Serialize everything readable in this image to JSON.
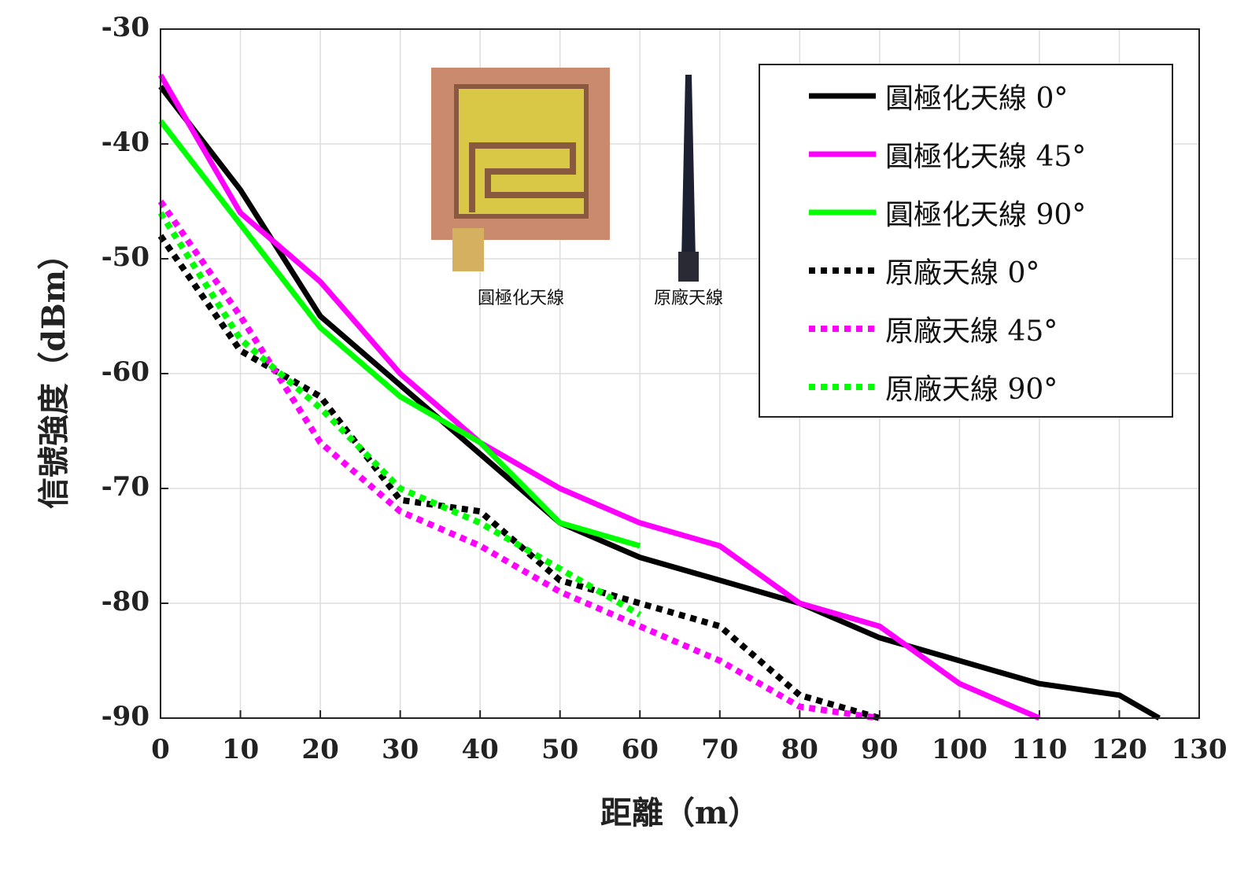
{
  "chart_data": {
    "type": "line",
    "x_label": "距離（m）",
    "y_label": "信號強度（dBm）",
    "x": [
      0,
      10,
      20,
      30,
      40,
      50,
      60,
      70,
      80,
      90,
      100,
      110,
      120,
      125
    ],
    "series": [
      {
        "name": "圓極化天線 0°",
        "color": "#000000",
        "style": "solid",
        "values": [
          -35,
          -44,
          -55,
          -61,
          -67,
          -73,
          -76,
          -78,
          -80,
          -83,
          -85,
          -87,
          -88,
          -90
        ]
      },
      {
        "name": "圓極化天線 45°",
        "color": "#ff00ff",
        "style": "solid",
        "values": [
          -34,
          -46,
          -52,
          -60,
          -66,
          -70,
          -73,
          -75,
          -80,
          -82,
          -87,
          -90,
          null,
          null
        ]
      },
      {
        "name": "圓極化天線 90°",
        "color": "#00ff00",
        "style": "solid",
        "values": [
          -38,
          -47,
          -56,
          -62,
          -66,
          -73,
          -75,
          null,
          null,
          null,
          null,
          null,
          null,
          null
        ]
      },
      {
        "name": "原廠天線 0°",
        "color": "#000000",
        "style": "dotted",
        "values": [
          -48,
          -58,
          -62,
          -71,
          -72,
          -78,
          -80,
          -82,
          -88,
          -90,
          null,
          null,
          null,
          null
        ]
      },
      {
        "name": "原廠天線 45°",
        "color": "#ff00ff",
        "style": "dotted",
        "values": [
          -45,
          -55,
          -66,
          -72,
          -75,
          -79,
          -82,
          -85,
          -89,
          -90,
          null,
          null,
          null,
          null
        ]
      },
      {
        "name": "原廠天線 90°",
        "color": "#00ff00",
        "style": "dotted",
        "values": [
          -46,
          -57,
          -63,
          -70,
          -73,
          -77,
          -81,
          null,
          null,
          null,
          null,
          null,
          null,
          null
        ]
      }
    ],
    "xlim": [
      0,
      130
    ],
    "xticks": [
      0,
      10,
      20,
      30,
      40,
      50,
      60,
      70,
      80,
      90,
      100,
      110,
      120,
      130
    ],
    "ylim": [
      -90,
      -30
    ],
    "yticks": [
      -90,
      -80,
      -70,
      -60,
      -50,
      -40,
      -30
    ],
    "grid": true,
    "legend": "upper right",
    "annotations": [
      "圓極化天線",
      "原廠天線"
    ]
  }
}
